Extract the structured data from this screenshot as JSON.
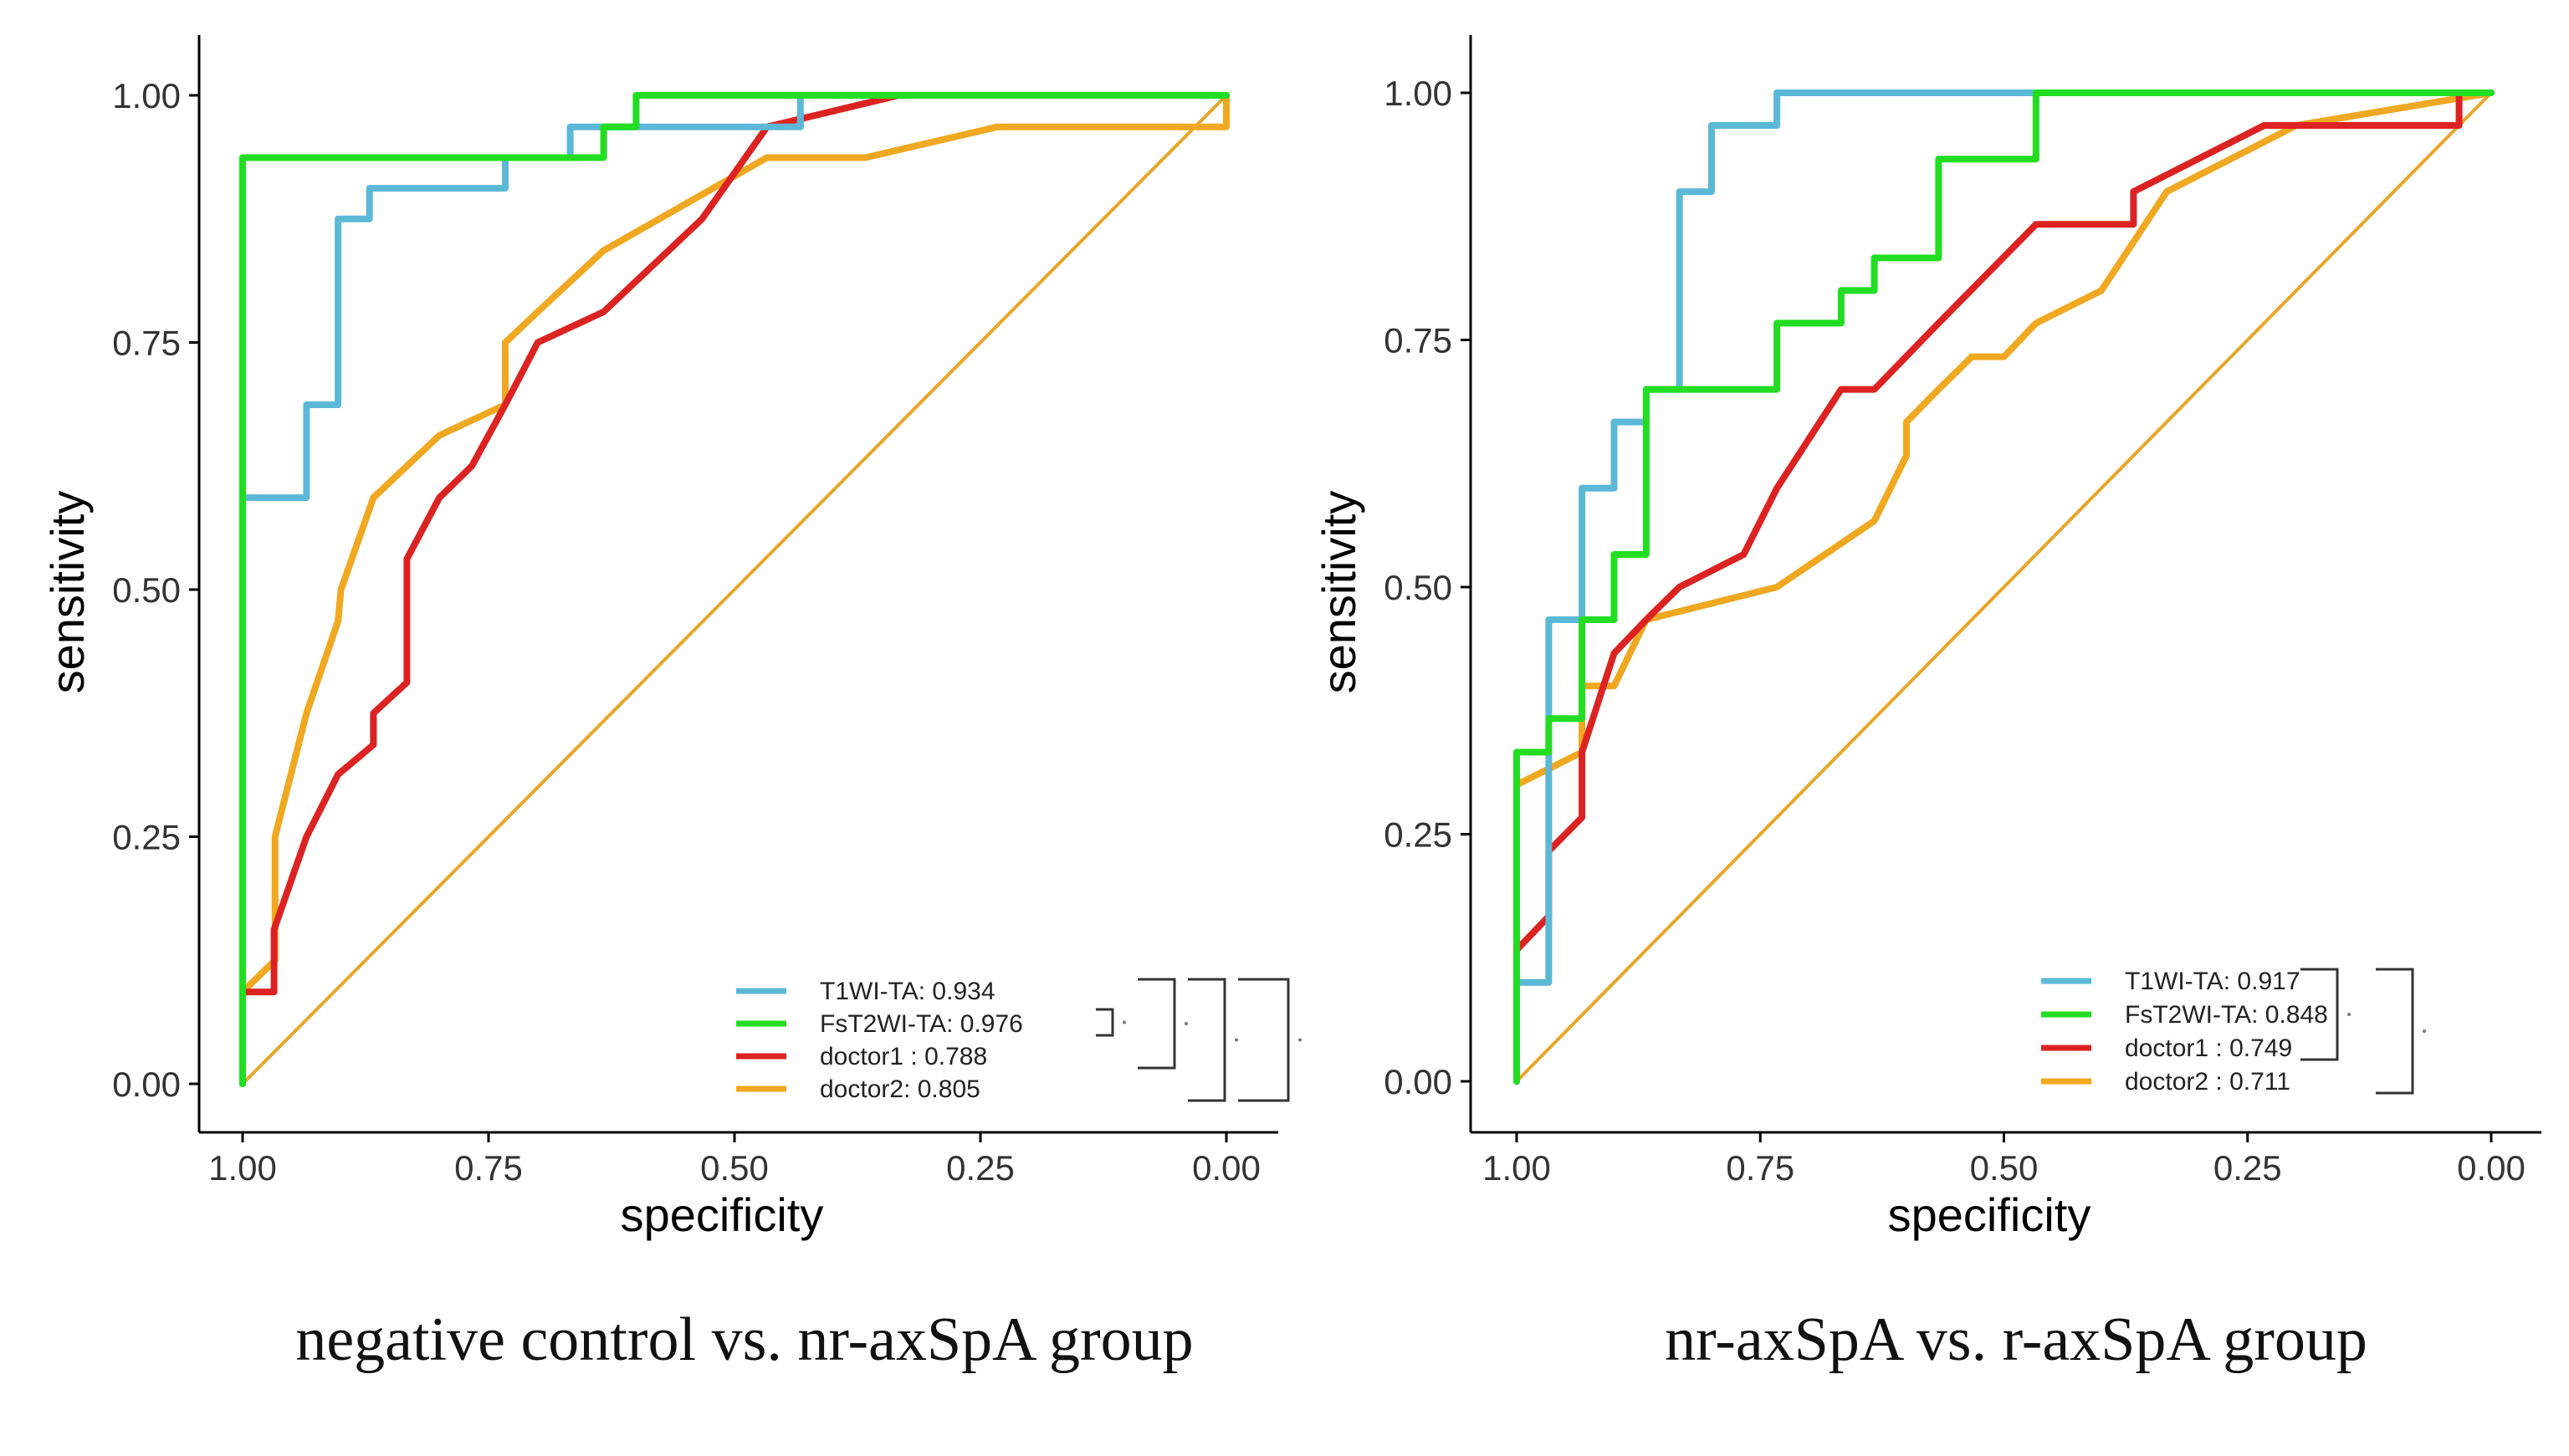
{
  "chart_data": [
    {
      "type": "line",
      "subtype": "roc",
      "caption": "negative control vs. nr-axSpA group",
      "xlabel": "specificity",
      "ylabel": "sensitivity",
      "xlim": [
        1.0,
        0.0
      ],
      "ylim": [
        0.0,
        1.0
      ],
      "x_reversed": true,
      "xticks": [
        "1.00",
        "0.75",
        "0.50",
        "0.25",
        "0.00"
      ],
      "yticks": [
        "0.00",
        "0.25",
        "0.50",
        "0.75",
        "1.00"
      ],
      "grid": false,
      "legend_position": "bottom-right",
      "significance_brackets": 3,
      "series": [
        {
          "name": "T1WI-TA:",
          "auc": "0.934",
          "color": "#5bb8d6",
          "specificity": [
            1.0,
            1.0,
            0.935,
            0.935,
            0.903,
            0.903,
            0.871,
            0.871,
            0.839,
            0.839,
            0.733,
            0.733,
            0.667,
            0.667,
            0.633,
            0.633,
            0.433,
            0.433,
            0.0
          ],
          "sensitivity": [
            0.0,
            0.593,
            0.593,
            0.687,
            0.687,
            0.875,
            0.875,
            0.906,
            0.906,
            0.906,
            0.906,
            0.937,
            0.937,
            0.968,
            0.968,
            0.968,
            0.968,
            1.0,
            1.0
          ]
        },
        {
          "name": "FsT2WI-TA:",
          "auc": "0.976",
          "color": "#22dd22",
          "specificity": [
            1.0,
            1.0,
            0.733,
            0.733,
            0.633,
            0.633,
            0.6,
            0.6,
            0.367,
            0.0
          ],
          "sensitivity": [
            0.0,
            0.937,
            0.937,
            0.937,
            0.937,
            0.968,
            0.968,
            1.0,
            1.0,
            1.0
          ]
        },
        {
          "name": "doctor1 :",
          "auc": "0.788",
          "color": "#dd2222",
          "specificity": [
            1.0,
            1.0,
            0.968,
            0.968,
            0.935,
            0.903,
            0.867,
            0.867,
            0.833,
            0.833,
            0.8,
            0.767,
            0.733,
            0.7,
            0.633,
            0.533,
            0.467,
            0.333,
            0.0,
            0.0
          ],
          "sensitivity": [
            0.0,
            0.093,
            0.093,
            0.156,
            0.25,
            0.313,
            0.343,
            0.375,
            0.406,
            0.531,
            0.593,
            0.625,
            0.687,
            0.75,
            0.781,
            0.875,
            0.968,
            1.0,
            1.0,
            1.0
          ]
        },
        {
          "name": "doctor2:",
          "auc": "0.805",
          "color": "#f0a820",
          "specificity": [
            1.0,
            1.0,
            0.967,
            0.967,
            0.935,
            0.903,
            0.9,
            0.867,
            0.8,
            0.733,
            0.733,
            0.7,
            0.633,
            0.467,
            0.367,
            0.233,
            0.0,
            0.0
          ],
          "sensitivity": [
            0.0,
            0.093,
            0.125,
            0.25,
            0.375,
            0.468,
            0.5,
            0.593,
            0.656,
            0.687,
            0.75,
            0.781,
            0.843,
            0.937,
            0.937,
            0.968,
            0.968,
            1.0
          ]
        }
      ]
    },
    {
      "type": "line",
      "subtype": "roc",
      "caption": "nr-axSpA vs. r-axSpA group",
      "xlabel": "specificity",
      "ylabel": "sensitivity",
      "xlim": [
        1.0,
        0.0
      ],
      "ylim": [
        0.0,
        1.0
      ],
      "x_reversed": true,
      "xticks": [
        "1.00",
        "0.75",
        "0.50",
        "0.25",
        "0.00"
      ],
      "yticks": [
        "0.00",
        "0.25",
        "0.50",
        "0.75",
        "1.00"
      ],
      "grid": false,
      "legend_position": "bottom-right",
      "significance_brackets": 2,
      "series": [
        {
          "name": "T1WI-TA:",
          "auc": "0.917",
          "color": "#5bb8d6",
          "specificity": [
            1.0,
            1.0,
            0.967,
            0.967,
            0.933,
            0.933,
            0.9,
            0.9,
            0.867,
            0.867,
            0.833,
            0.833,
            0.8,
            0.8,
            0.767,
            0.767,
            0.733,
            0.733,
            0.0
          ],
          "sensitivity": [
            0.0,
            0.1,
            0.1,
            0.467,
            0.467,
            0.6,
            0.6,
            0.667,
            0.667,
            0.7,
            0.7,
            0.9,
            0.9,
            0.967,
            0.967,
            0.967,
            0.967,
            1.0,
            1.0
          ]
        },
        {
          "name": "FsT2WI-TA:",
          "auc": "0.848",
          "color": "#22dd22",
          "specificity": [
            1.0,
            1.0,
            0.967,
            0.967,
            0.933,
            0.933,
            0.9,
            0.9,
            0.867,
            0.867,
            0.733,
            0.733,
            0.667,
            0.667,
            0.633,
            0.633,
            0.567,
            0.567,
            0.467,
            0.467,
            0.0
          ],
          "sensitivity": [
            0.0,
            0.333,
            0.333,
            0.367,
            0.367,
            0.467,
            0.467,
            0.533,
            0.533,
            0.7,
            0.7,
            0.767,
            0.767,
            0.8,
            0.8,
            0.833,
            0.833,
            0.933,
            0.933,
            1.0,
            1.0
          ]
        },
        {
          "name": "doctor1 :",
          "auc": "0.749",
          "color": "#dd2222",
          "specificity": [
            1.0,
            1.0,
            0.967,
            0.967,
            0.933,
            0.933,
            0.9,
            0.867,
            0.833,
            0.767,
            0.733,
            0.667,
            0.633,
            0.567,
            0.467,
            0.367,
            0.367,
            0.233,
            0.033,
            0.033,
            0.0
          ],
          "sensitivity": [
            0.0,
            0.133,
            0.167,
            0.233,
            0.267,
            0.333,
            0.433,
            0.467,
            0.5,
            0.533,
            0.6,
            0.7,
            0.7,
            0.767,
            0.867,
            0.867,
            0.9,
            0.967,
            0.967,
            1.0,
            1.0
          ]
        },
        {
          "name": "doctor2",
          "auc": ": 0.711",
          "color": "#f0a820",
          "specificity": [
            1.0,
            1.0,
            0.933,
            0.933,
            0.9,
            0.867,
            0.733,
            0.633,
            0.6,
            0.6,
            0.567,
            0.533,
            0.5,
            0.467,
            0.4,
            0.333,
            0.2,
            0.0
          ],
          "sensitivity": [
            0.0,
            0.3,
            0.333,
            0.4,
            0.4,
            0.467,
            0.5,
            0.567,
            0.633,
            0.667,
            0.7,
            0.733,
            0.733,
            0.767,
            0.8,
            0.9,
            0.967,
            1.0
          ]
        }
      ]
    }
  ]
}
